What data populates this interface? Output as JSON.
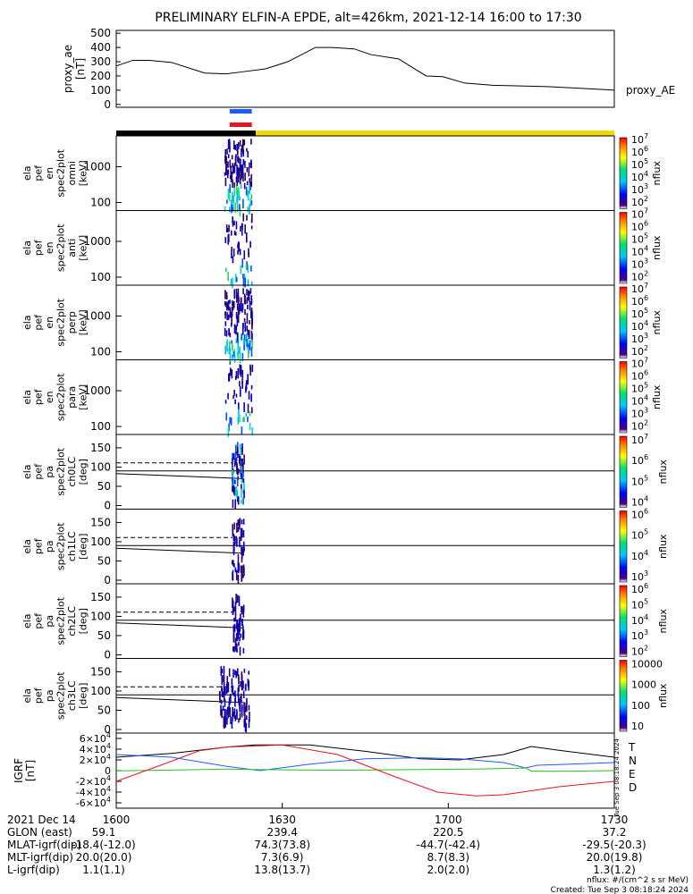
{
  "title": "PRELIMINARY ELFIN-A EPDE, alt=426km, 2021-12-14 16:00 to 17:30",
  "colors": {
    "black": "#000000",
    "blue": "#1f5cff",
    "red": "#e8141e",
    "yellow": "#f5d800",
    "green": "#22c322"
  },
  "chart_data": [
    {
      "type": "line",
      "id": "proxy_ae",
      "ylabel": [
        "proxy_ae",
        "[nT]"
      ],
      "right_label": "proxy_AE",
      "ylim": [
        -20,
        520
      ],
      "yticks": [
        "0",
        "100",
        "200",
        "300",
        "400",
        "500"
      ],
      "series": [
        {
          "name": "proxy_AE",
          "x": [
            0,
            3,
            6,
            10,
            16,
            20,
            23,
            27,
            31,
            36,
            39,
            43,
            46,
            51,
            56,
            59,
            63,
            68,
            73,
            78,
            83,
            88,
            90
          ],
          "y": [
            270,
            310,
            310,
            295,
            220,
            215,
            230,
            250,
            300,
            400,
            400,
            390,
            350,
            320,
            200,
            195,
            150,
            135,
            130,
            125,
            115,
            105,
            100
          ]
        }
      ]
    },
    {
      "type": "bar",
      "id": "science_zone_bars",
      "bars": [
        {
          "color": "blue",
          "x": [
            20.5,
            24.5
          ]
        },
        {
          "color": "red",
          "x": [
            20.5,
            24.5
          ]
        }
      ],
      "state_bar": [
        {
          "color": "black",
          "x": [
            0,
            25.2
          ]
        },
        {
          "color": "yellow",
          "x": [
            25.2,
            90
          ]
        }
      ]
    },
    {
      "type": "heatmap",
      "id": "energy_spectrograms",
      "panels": [
        {
          "ylabel": [
            "ela",
            "pef",
            "en",
            "spec2plot",
            "omni",
            "[keV]"
          ],
          "yticks": [
            "100",
            "1000"
          ],
          "cbar_ticks": [
            "10^7",
            "10^6",
            "10^5",
            "10^4",
            "10^3",
            "10^2"
          ],
          "cbar_label": "nflux"
        },
        {
          "ylabel": [
            "ela",
            "pef",
            "en",
            "spec2plot",
            "anti",
            "[keV]"
          ],
          "yticks": [
            "100",
            "1000"
          ],
          "cbar_ticks": [
            "10^7",
            "10^6",
            "10^5",
            "10^4",
            "10^3",
            "10^2"
          ],
          "cbar_label": "nflux"
        },
        {
          "ylabel": [
            "ela",
            "pef",
            "en",
            "spec2plot",
            "perp",
            "[keV]"
          ],
          "yticks": [
            "100",
            "1000"
          ],
          "cbar_ticks": [
            "10^7",
            "10^6",
            "10^5",
            "10^4",
            "10^3",
            "10^2"
          ],
          "cbar_label": "nflux"
        },
        {
          "ylabel": [
            "ela",
            "pef",
            "en",
            "spec2plot",
            "para",
            "[keV]"
          ],
          "yticks": [
            "100",
            "1000"
          ],
          "cbar_ticks": [
            "10^7",
            "10^6",
            "10^5",
            "10^4",
            "10^3",
            "10^2"
          ],
          "cbar_label": "nflux"
        }
      ]
    },
    {
      "type": "heatmap",
      "id": "pitch_angle_spectrograms",
      "panels": [
        {
          "ylabel": [
            "ela",
            "pef",
            "pa",
            "spec2plot",
            "ch0LC",
            "[deg]"
          ],
          "yticks": [
            "0",
            "50",
            "100",
            "150"
          ],
          "cbar_ticks": [
            "10^7",
            "10^6",
            "10^5",
            "10^4"
          ],
          "cbar_label": "nflux"
        },
        {
          "ylabel": [
            "ela",
            "pef",
            "pa",
            "spec2plot",
            "ch1LC",
            "[deg]"
          ],
          "yticks": [
            "0",
            "50",
            "100",
            "150"
          ],
          "cbar_ticks": [
            "10^6",
            "10^5",
            "10^4",
            "10^3"
          ],
          "cbar_label": "nflux"
        },
        {
          "ylabel": [
            "ela",
            "pef",
            "pa",
            "spec2plot",
            "ch2LC",
            "[deg]"
          ],
          "yticks": [
            "0",
            "50",
            "100",
            "150"
          ],
          "cbar_ticks": [
            "10^6",
            "10^5",
            "10^4",
            "10^3",
            "10^2"
          ],
          "cbar_label": "nflux"
        },
        {
          "ylabel": [
            "ela",
            "pef",
            "pa",
            "spec2plot",
            "ch3LC",
            "[deg]"
          ],
          "yticks": [
            "0",
            "50",
            "100",
            "150"
          ],
          "cbar_ticks": [
            "10000",
            "1000",
            "100",
            "10"
          ],
          "cbar_label": "nflux"
        }
      ]
    },
    {
      "type": "line",
      "id": "igrf",
      "ylabel": [
        "IGRF",
        "[nT]"
      ],
      "ylim": [
        -70000,
        70000
      ],
      "yticks": [
        "-6×10^4",
        "-4×10^4",
        "-2×10^4",
        "0",
        "2×10^4",
        "4×10^4",
        "6×10^4"
      ],
      "series": [
        {
          "name": "T",
          "color": "black",
          "x": [
            0,
            10,
            20,
            25,
            35,
            45,
            55,
            62,
            70,
            75,
            80,
            90
          ],
          "y": [
            25000,
            32000,
            44000,
            48000,
            48000,
            36000,
            22000,
            20000,
            30000,
            45000,
            38000,
            25000
          ]
        },
        {
          "name": "N",
          "color": "blue",
          "x": [
            0,
            10,
            20,
            26,
            35,
            45,
            55,
            62,
            70,
            74,
            76,
            82,
            90
          ],
          "y": [
            30000,
            25000,
            8000,
            0,
            12000,
            22000,
            24000,
            22000,
            15000,
            5000,
            10000,
            12000,
            15000
          ]
        },
        {
          "name": "E",
          "color": "green",
          "x": [
            0,
            10,
            20,
            25,
            35,
            45,
            55,
            65,
            74,
            75,
            82,
            90
          ],
          "y": [
            -500,
            1000,
            3000,
            2000,
            1000,
            1000,
            2000,
            3000,
            5000,
            -1000,
            -1000,
            0
          ]
        },
        {
          "name": "D",
          "color": "red",
          "x": [
            0,
            8,
            15,
            20,
            30,
            40,
            50,
            58,
            65,
            70,
            80,
            90
          ],
          "y": [
            -20000,
            10000,
            37000,
            44000,
            48000,
            30000,
            -10000,
            -40000,
            -47000,
            -45000,
            -30000,
            -20000
          ]
        }
      ]
    }
  ],
  "ephemeris": {
    "date_label": "2021 Dec 14",
    "tick_times": [
      "1600",
      "1630",
      "1700",
      "1730"
    ],
    "rows": [
      {
        "label": "GLON (east)",
        "values": [
          "59.1",
          "239.4",
          "220.5",
          "37.2"
        ]
      },
      {
        "label": "MLAT-igrf(dip)",
        "values": [
          "-18.4(-12.0)",
          "74.3(73.8)",
          "-44.7(-42.4)",
          "-29.5(-20.3)"
        ]
      },
      {
        "label": "MLT-igrf(dip)",
        "values": [
          "20.0(20.0)",
          "7.3(6.9)",
          "8.7(8.3)",
          "20.0(19.8)"
        ]
      },
      {
        "label": "L-igrf(dip)",
        "values": [
          "1.1(1.1)",
          "13.8(13.7)",
          "2.0(2.0)",
          "1.3(1.2)"
        ]
      }
    ]
  },
  "footer": {
    "units": "nflux: #/(cm^2 s sr MeV)",
    "created": "Created: Tue Sep  3 08:18:24 2024",
    "vertical_stamp": "Tue Sep  3 08:18:24 2024"
  }
}
